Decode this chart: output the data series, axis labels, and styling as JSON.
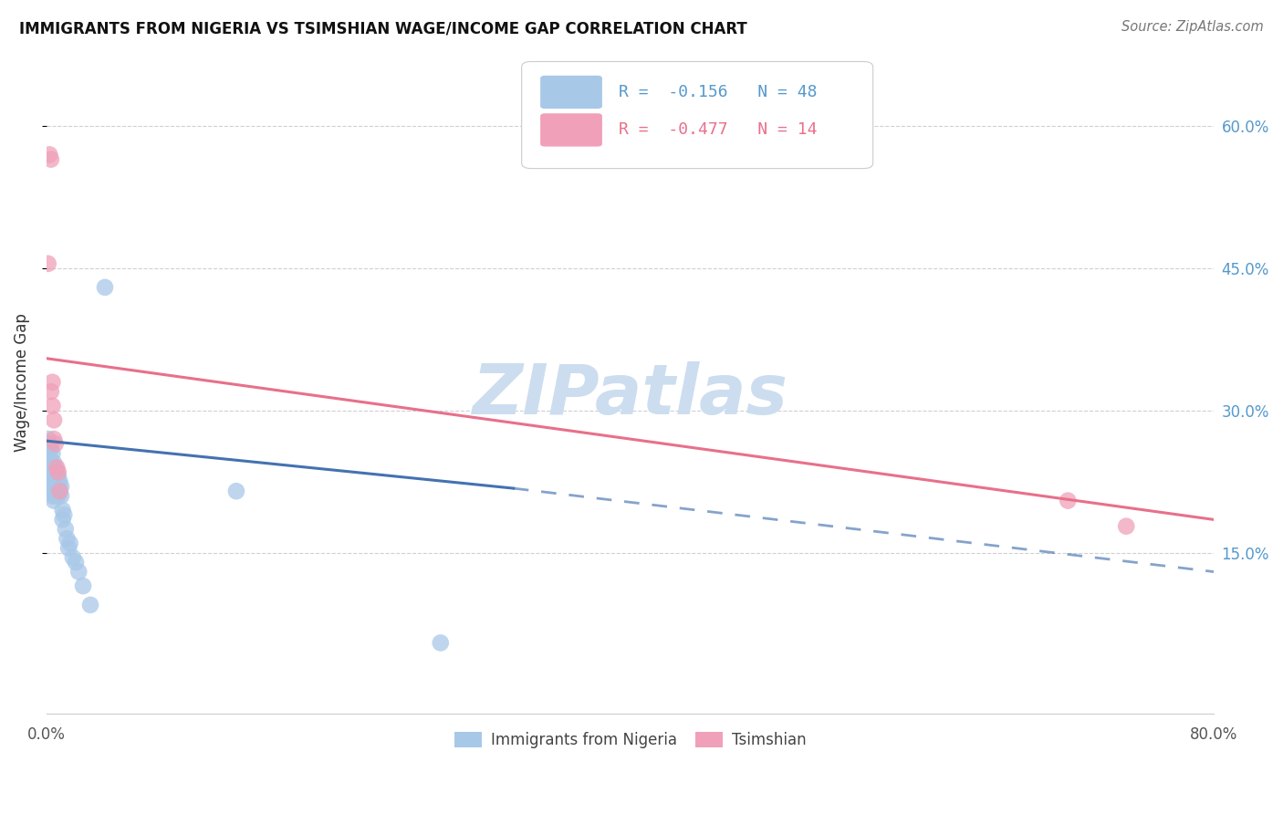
{
  "title": "IMMIGRANTS FROM NIGERIA VS TSIMSHIAN WAGE/INCOME GAP CORRELATION CHART",
  "source": "Source: ZipAtlas.com",
  "ylabel": "Wage/Income Gap",
  "xlim": [
    0.0,
    0.8
  ],
  "ylim": [
    -0.02,
    0.68
  ],
  "yticks": [
    0.15,
    0.3,
    0.45,
    0.6
  ],
  "ytick_labels": [
    "15.0%",
    "30.0%",
    "45.0%",
    "60.0%"
  ],
  "xticks": [
    0.0,
    0.2,
    0.4,
    0.6,
    0.8
  ],
  "xtick_labels": [
    "0.0%",
    "",
    "",
    "",
    "80.0%"
  ],
  "blue_R": -0.156,
  "blue_N": 48,
  "pink_R": -0.477,
  "pink_N": 14,
  "blue_color": "#a8c8e8",
  "pink_color": "#f0a0b8",
  "blue_line_color": "#4472b0",
  "pink_line_color": "#e8708a",
  "watermark": "ZIPatlas",
  "watermark_color": "#ccddef",
  "legend_label_blue": "Immigrants from Nigeria",
  "legend_label_pink": "Tsimshian",
  "blue_x": [
    0.001,
    0.001,
    0.002,
    0.002,
    0.002,
    0.003,
    0.003,
    0.003,
    0.003,
    0.004,
    0.004,
    0.004,
    0.004,
    0.004,
    0.005,
    0.005,
    0.005,
    0.005,
    0.005,
    0.006,
    0.006,
    0.006,
    0.006,
    0.007,
    0.007,
    0.007,
    0.008,
    0.008,
    0.008,
    0.009,
    0.009,
    0.01,
    0.01,
    0.011,
    0.011,
    0.012,
    0.013,
    0.014,
    0.015,
    0.016,
    0.018,
    0.02,
    0.022,
    0.025,
    0.03,
    0.04,
    0.13,
    0.27
  ],
  "blue_y": [
    0.27,
    0.255,
    0.265,
    0.25,
    0.24,
    0.26,
    0.245,
    0.235,
    0.225,
    0.255,
    0.24,
    0.23,
    0.22,
    0.21,
    0.245,
    0.235,
    0.225,
    0.215,
    0.205,
    0.24,
    0.23,
    0.22,
    0.21,
    0.235,
    0.225,
    0.215,
    0.23,
    0.22,
    0.21,
    0.225,
    0.215,
    0.22,
    0.21,
    0.195,
    0.185,
    0.19,
    0.175,
    0.165,
    0.155,
    0.16,
    0.145,
    0.14,
    0.13,
    0.115,
    0.095,
    0.43,
    0.215,
    0.055
  ],
  "pink_x": [
    0.001,
    0.002,
    0.003,
    0.003,
    0.004,
    0.004,
    0.005,
    0.005,
    0.006,
    0.007,
    0.008,
    0.009,
    0.7,
    0.74
  ],
  "pink_y": [
    0.455,
    0.57,
    0.565,
    0.32,
    0.33,
    0.305,
    0.29,
    0.27,
    0.265,
    0.24,
    0.235,
    0.215,
    0.205,
    0.178
  ],
  "blue_line_x0": 0.0,
  "blue_line_x1": 0.32,
  "blue_line_x2": 0.8,
  "blue_line_y0": 0.268,
  "blue_line_y1": 0.218,
  "blue_line_y2": 0.13,
  "pink_line_x0": 0.0,
  "pink_line_x1": 0.8,
  "pink_line_y0": 0.355,
  "pink_line_y1": 0.185,
  "background_color": "#ffffff",
  "grid_color": "#d0d0d0"
}
